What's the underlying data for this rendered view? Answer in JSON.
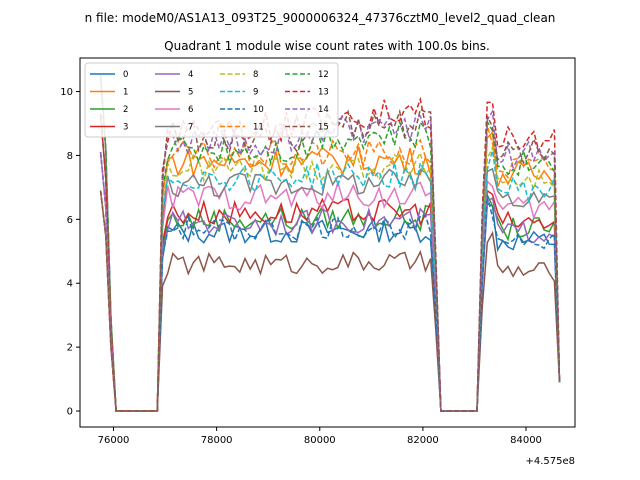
{
  "suptitle": "n file: modeM0/AS1A13_093T25_9000006324_47376cztM0_level2_quad_clean",
  "chart_data": {
    "type": "line",
    "title": "Quadrant 1 module wise count rates with 100.0s bins.",
    "xlabel": "",
    "ylabel": "",
    "x_offset_label": "+4.575e8",
    "xlim": [
      75350,
      84950
    ],
    "ylim": [
      -0.5,
      11.05
    ],
    "xticks": [
      76000,
      78000,
      80000,
      82000,
      84000
    ],
    "yticks": [
      0,
      2,
      4,
      6,
      8,
      10
    ],
    "grid": false,
    "legend_placement": "top-left",
    "legend_columns": 4,
    "segments": [
      {
        "start": 75750,
        "end": 76950,
        "shape": "decay"
      },
      {
        "start": 76950,
        "end": 82350,
        "shape": "plateau"
      },
      {
        "start": 82350,
        "end": 83250,
        "shape": "gap"
      },
      {
        "start": 83250,
        "end": 84650,
        "shape": "plateau"
      }
    ],
    "series": [
      {
        "name": "0",
        "color": "#1f77b4",
        "dash": false,
        "level": 5.6
      },
      {
        "name": "1",
        "color": "#ff7f0e",
        "dash": false,
        "level": 7.8
      },
      {
        "name": "2",
        "color": "#2ca02c",
        "dash": false,
        "level": 6.0
      },
      {
        "name": "3",
        "color": "#d62728",
        "dash": false,
        "level": 6.2
      },
      {
        "name": "4",
        "color": "#9467bd",
        "dash": false,
        "level": 5.9
      },
      {
        "name": "5",
        "color": "#8c564b",
        "dash": false,
        "level": 4.6
      },
      {
        "name": "6",
        "color": "#e377c2",
        "dash": false,
        "level": 6.7
      },
      {
        "name": "7",
        "color": "#7f7f7f",
        "dash": false,
        "level": 7.1
      },
      {
        "name": "8",
        "color": "#bcbd22",
        "dash": true,
        "level": 7.6
      },
      {
        "name": "9",
        "color": "#17becf",
        "dash": true,
        "level": 7.3
      },
      {
        "name": "10",
        "color": "#1f77b4",
        "dash": true,
        "level": 5.7
      },
      {
        "name": "11",
        "color": "#ff7f0e",
        "dash": true,
        "level": 8.0
      },
      {
        "name": "12",
        "color": "#2ca02c",
        "dash": true,
        "level": 8.2
      },
      {
        "name": "13",
        "color": "#d62728",
        "dash": true,
        "level": 8.9
      },
      {
        "name": "14",
        "color": "#9467bd",
        "dash": true,
        "level": 8.4
      },
      {
        "name": "15",
        "color": "#8c564b",
        "dash": true,
        "level": 8.6
      }
    ]
  }
}
